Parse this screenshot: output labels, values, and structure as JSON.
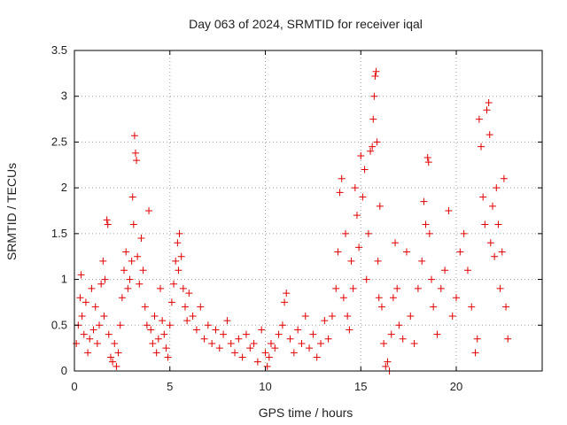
{
  "chart_data": {
    "type": "scatter",
    "title": "Day 063 of 2024, SRMTID for receiver iqal",
    "xlabel": "GPS time / hours",
    "ylabel": "SRMTID / TECUs",
    "xlim": [
      0,
      24.5
    ],
    "ylim": [
      0,
      3.5
    ],
    "grid": true,
    "marker": "+",
    "color": "#e00000",
    "x_ticks": [
      {
        "value": 0,
        "label": "0"
      },
      {
        "value": 5,
        "label": "5"
      },
      {
        "value": 10,
        "label": "10"
      },
      {
        "value": 15,
        "label": "15"
      },
      {
        "value": 20,
        "label": "20"
      }
    ],
    "y_ticks": [
      {
        "value": 0,
        "label": "0"
      },
      {
        "value": 0.5,
        "label": "0.5"
      },
      {
        "value": 1,
        "label": "1"
      },
      {
        "value": 1.5,
        "label": "1.5"
      },
      {
        "value": 2,
        "label": "2"
      },
      {
        "value": 2.5,
        "label": "2.5"
      },
      {
        "value": 3,
        "label": "3"
      },
      {
        "value": 3.5,
        "label": "3.5"
      }
    ],
    "series": [
      {
        "name": "SRMTID",
        "points": [
          [
            0.1,
            0.3
          ],
          [
            0.2,
            0.5
          ],
          [
            0.3,
            0.8
          ],
          [
            0.35,
            1.05
          ],
          [
            0.4,
            0.6
          ],
          [
            0.5,
            0.4
          ],
          [
            0.6,
            0.75
          ],
          [
            0.7,
            0.2
          ],
          [
            0.8,
            0.35
          ],
          [
            0.9,
            0.9
          ],
          [
            1.0,
            0.45
          ],
          [
            1.1,
            0.7
          ],
          [
            1.2,
            0.3
          ],
          [
            1.3,
            0.5
          ],
          [
            1.4,
            0.95
          ],
          [
            1.5,
            1.2
          ],
          [
            1.55,
            0.6
          ],
          [
            1.6,
            1.0
          ],
          [
            1.7,
            1.65
          ],
          [
            1.75,
            1.6
          ],
          [
            1.8,
            0.4
          ],
          [
            1.9,
            0.15
          ],
          [
            2.0,
            0.1
          ],
          [
            2.1,
            0.3
          ],
          [
            2.2,
            0.05
          ],
          [
            2.3,
            0.2
          ],
          [
            2.4,
            0.5
          ],
          [
            2.5,
            0.8
          ],
          [
            2.6,
            1.1
          ],
          [
            2.7,
            1.3
          ],
          [
            2.8,
            0.9
          ],
          [
            2.9,
            1.0
          ],
          [
            3.0,
            1.2
          ],
          [
            3.05,
            1.9
          ],
          [
            3.1,
            1.6
          ],
          [
            3.15,
            2.57
          ],
          [
            3.2,
            2.38
          ],
          [
            3.25,
            2.3
          ],
          [
            3.3,
            1.25
          ],
          [
            3.4,
            0.95
          ],
          [
            3.5,
            1.45
          ],
          [
            3.6,
            1.1
          ],
          [
            3.7,
            0.7
          ],
          [
            3.8,
            0.5
          ],
          [
            3.9,
            1.75
          ],
          [
            4.0,
            0.45
          ],
          [
            4.1,
            0.3
          ],
          [
            4.2,
            0.6
          ],
          [
            4.3,
            0.2
          ],
          [
            4.4,
            0.35
          ],
          [
            4.5,
            0.9
          ],
          [
            4.6,
            0.55
          ],
          [
            4.7,
            0.4
          ],
          [
            4.8,
            0.25
          ],
          [
            4.9,
            0.15
          ],
          [
            5.0,
            0.5
          ],
          [
            5.1,
            0.75
          ],
          [
            5.2,
            0.95
          ],
          [
            5.3,
            1.2
          ],
          [
            5.4,
            1.4
          ],
          [
            5.45,
            1.1
          ],
          [
            5.5,
            1.5
          ],
          [
            5.6,
            1.25
          ],
          [
            5.7,
            0.9
          ],
          [
            5.8,
            0.7
          ],
          [
            5.9,
            0.55
          ],
          [
            6.0,
            0.85
          ],
          [
            6.2,
            0.6
          ],
          [
            6.4,
            0.45
          ],
          [
            6.6,
            0.7
          ],
          [
            6.8,
            0.35
          ],
          [
            7.0,
            0.5
          ],
          [
            7.2,
            0.3
          ],
          [
            7.4,
            0.45
          ],
          [
            7.6,
            0.25
          ],
          [
            7.8,
            0.4
          ],
          [
            8.0,
            0.55
          ],
          [
            8.2,
            0.3
          ],
          [
            8.4,
            0.2
          ],
          [
            8.6,
            0.35
          ],
          [
            8.8,
            0.15
          ],
          [
            9.0,
            0.4
          ],
          [
            9.2,
            0.25
          ],
          [
            9.4,
            0.3
          ],
          [
            9.6,
            0.1
          ],
          [
            9.8,
            0.45
          ],
          [
            10.0,
            0.2
          ],
          [
            10.1,
            0.05
          ],
          [
            10.2,
            0.15
          ],
          [
            10.3,
            0.3
          ],
          [
            10.5,
            0.25
          ],
          [
            10.7,
            0.4
          ],
          [
            10.9,
            0.5
          ],
          [
            11.0,
            0.75
          ],
          [
            11.1,
            0.85
          ],
          [
            11.3,
            0.35
          ],
          [
            11.5,
            0.2
          ],
          [
            11.7,
            0.45
          ],
          [
            11.9,
            0.3
          ],
          [
            12.1,
            0.6
          ],
          [
            12.3,
            0.25
          ],
          [
            12.5,
            0.4
          ],
          [
            12.7,
            0.15
          ],
          [
            12.9,
            0.3
          ],
          [
            13.1,
            0.55
          ],
          [
            13.3,
            0.35
          ],
          [
            13.5,
            0.6
          ],
          [
            13.7,
            0.9
          ],
          [
            13.8,
            1.3
          ],
          [
            13.9,
            1.95
          ],
          [
            14.0,
            2.1
          ],
          [
            14.1,
            0.8
          ],
          [
            14.2,
            1.5
          ],
          [
            14.3,
            0.6
          ],
          [
            14.4,
            0.45
          ],
          [
            14.5,
            1.2
          ],
          [
            14.6,
            0.9
          ],
          [
            14.7,
            2.0
          ],
          [
            14.8,
            1.7
          ],
          [
            14.9,
            1.35
          ],
          [
            15.0,
            2.35
          ],
          [
            15.1,
            1.9
          ],
          [
            15.2,
            2.2
          ],
          [
            15.3,
            1.0
          ],
          [
            15.4,
            1.5
          ],
          [
            15.5,
            2.4
          ],
          [
            15.6,
            2.45
          ],
          [
            15.65,
            2.75
          ],
          [
            15.7,
            3.0
          ],
          [
            15.75,
            3.22
          ],
          [
            15.8,
            3.27
          ],
          [
            15.85,
            2.5
          ],
          [
            15.9,
            1.2
          ],
          [
            15.95,
            0.8
          ],
          [
            16.0,
            1.8
          ],
          [
            16.1,
            0.7
          ],
          [
            16.2,
            0.3
          ],
          [
            16.3,
            0.05
          ],
          [
            16.4,
            0.1
          ],
          [
            16.5,
            0.0
          ],
          [
            16.6,
            0.4
          ],
          [
            16.7,
            0.8
          ],
          [
            16.8,
            1.4
          ],
          [
            16.9,
            0.9
          ],
          [
            17.0,
            0.5
          ],
          [
            17.2,
            0.35
          ],
          [
            17.4,
            1.3
          ],
          [
            17.6,
            0.6
          ],
          [
            17.8,
            0.3
          ],
          [
            18.0,
            0.9
          ],
          [
            18.2,
            1.2
          ],
          [
            18.3,
            1.85
          ],
          [
            18.4,
            1.6
          ],
          [
            18.5,
            2.33
          ],
          [
            18.55,
            2.28
          ],
          [
            18.6,
            1.5
          ],
          [
            18.7,
            1.0
          ],
          [
            18.8,
            0.7
          ],
          [
            19.0,
            0.4
          ],
          [
            19.2,
            0.9
          ],
          [
            19.4,
            1.1
          ],
          [
            19.6,
            1.75
          ],
          [
            19.8,
            0.6
          ],
          [
            20.0,
            0.8
          ],
          [
            20.2,
            1.3
          ],
          [
            20.4,
            1.5
          ],
          [
            20.6,
            1.1
          ],
          [
            20.8,
            0.7
          ],
          [
            21.0,
            0.2
          ],
          [
            21.1,
            0.35
          ],
          [
            21.2,
            2.75
          ],
          [
            21.3,
            2.45
          ],
          [
            21.4,
            1.9
          ],
          [
            21.5,
            1.6
          ],
          [
            21.6,
            2.85
          ],
          [
            21.7,
            2.93
          ],
          [
            21.75,
            2.58
          ],
          [
            21.8,
            1.4
          ],
          [
            21.9,
            1.8
          ],
          [
            22.0,
            1.25
          ],
          [
            22.1,
            2.0
          ],
          [
            22.2,
            1.6
          ],
          [
            22.3,
            0.9
          ],
          [
            22.4,
            1.3
          ],
          [
            22.5,
            2.1
          ],
          [
            22.6,
            0.7
          ],
          [
            22.7,
            0.35
          ]
        ]
      }
    ]
  }
}
